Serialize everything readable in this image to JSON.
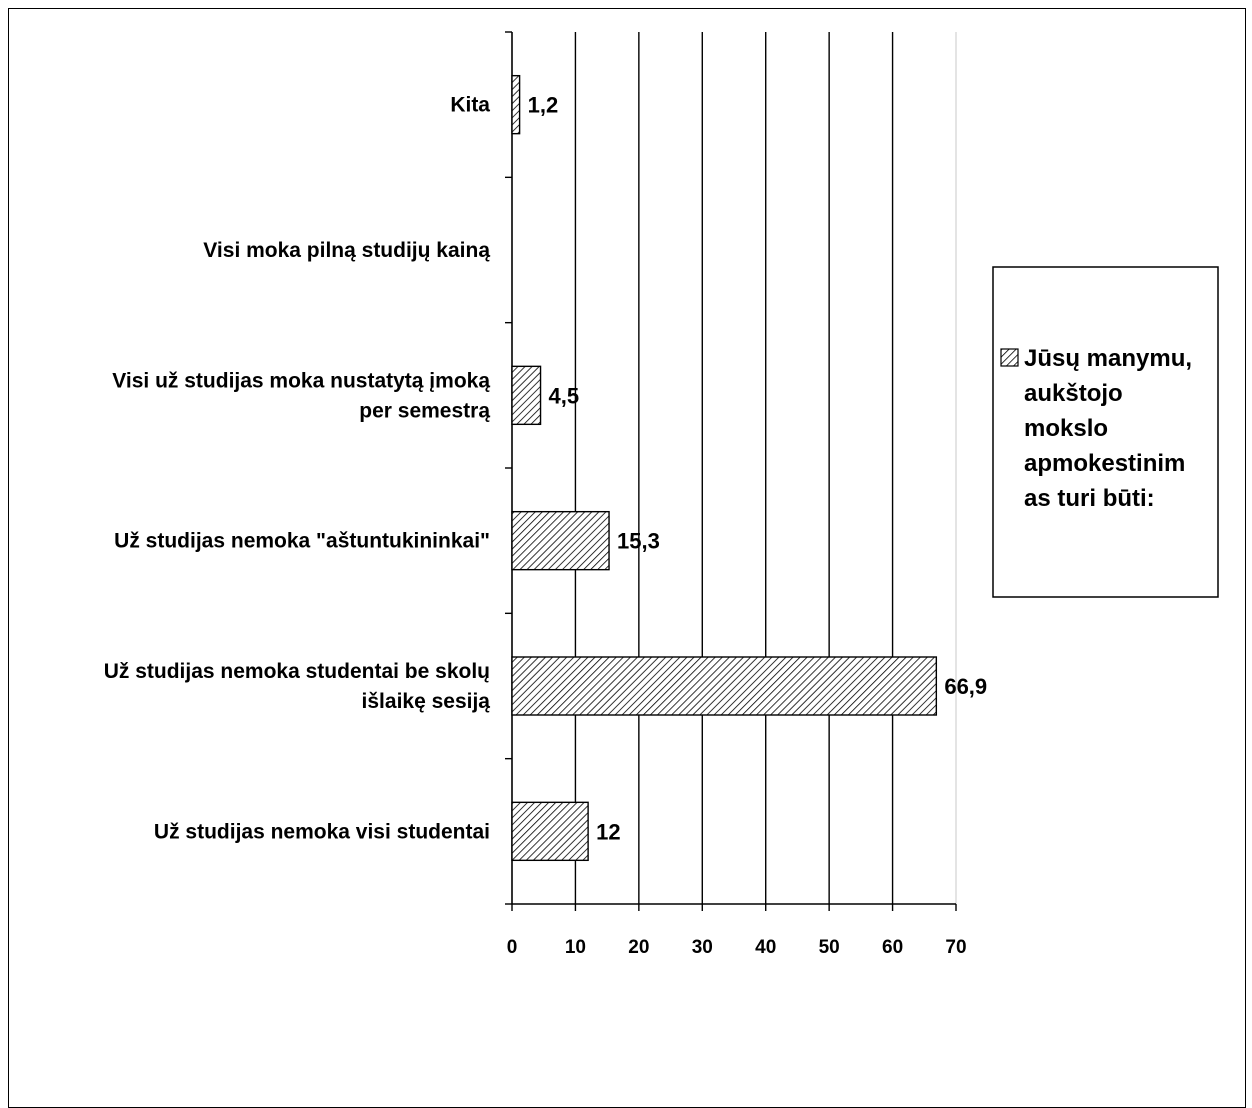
{
  "chart_data": {
    "type": "bar",
    "orientation": "horizontal",
    "categories": [
      [
        "Kita"
      ],
      [
        "Visi moka pilną studijų kainą"
      ],
      [
        "Visi už studijas moka nustatytą įmoką",
        "per semestrą"
      ],
      [
        "Už studijas nemoka \"aštuntukininkai\""
      ],
      [
        "Už studijas nemoka studentai be skolų",
        "išlaikę sesiją"
      ],
      [
        "Už studijas nemoka visi studentai"
      ]
    ],
    "series": [
      {
        "name": "Jūsų manymu, aukštojo mokslo apmokestinimas turi būti:",
        "values": [
          1.2,
          null,
          4.5,
          15.3,
          66.9,
          12
        ],
        "value_labels": [
          "1,2",
          "",
          "4,5",
          "15,3",
          "66,9",
          "12"
        ]
      }
    ],
    "legend_lines": [
      "Jūsų manymu,",
      "aukštojo",
      "mokslo",
      "apmokestinim",
      "as turi būti:"
    ],
    "x_ticks": [
      0,
      10,
      20,
      30,
      40,
      50,
      60,
      70
    ],
    "xlim": [
      0,
      70
    ],
    "grid": "vertical",
    "legend_position": "right",
    "bar_pattern": "diagonal-hatch",
    "colors": {
      "bar_fill": "#ffffff",
      "hatch": "#000000",
      "grid": "#000000",
      "axis": "#000000"
    }
  }
}
